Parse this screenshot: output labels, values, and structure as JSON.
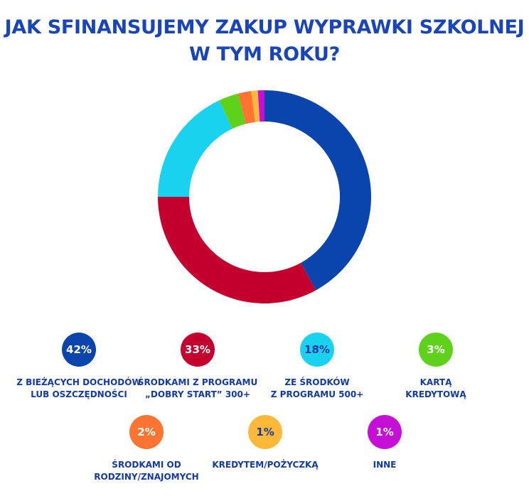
{
  "title": {
    "line1": "JAK SFINANSUJEMY ZAKUP WYPRAWKI SZKOLNEJ",
    "line2": "W TYM ROKU?"
  },
  "chart_data": {
    "type": "pie",
    "title": "JAK SFINANSUJEMY ZAKUP WYPRAWKI SZKOLNEJ W TYM ROKU?",
    "slices": [
      {
        "label_lines": [
          "Z BIEŻĄCYCH DOCHODÓW",
          "LUB OSZCZĘDNOŚCI"
        ],
        "value": 42,
        "value_label": "42%",
        "color": "#0a44ad",
        "text_color": "#ffffff"
      },
      {
        "label_lines": [
          "ŚRODKAMI Z PROGRAMU",
          "„DOBRY START” 300+"
        ],
        "value": 33,
        "value_label": "33%",
        "color": "#c4002f",
        "text_color": "#ffffff"
      },
      {
        "label_lines": [
          "ZE ŚRODKÓW",
          "Z PROGRAMU 500+"
        ],
        "value": 18,
        "value_label": "18%",
        "color": "#19d2ef",
        "text_color": "#143aa3"
      },
      {
        "label_lines": [
          "KARTĄ",
          "KREDYTOWĄ"
        ],
        "value": 3,
        "value_label": "3%",
        "color": "#5ed21a",
        "text_color": "#ffffff"
      },
      {
        "label_lines": [
          "ŚRODKAMI OD",
          "RODZINY/ZNAJOMYCH"
        ],
        "value": 2,
        "value_label": "2%",
        "color": "#ff7430",
        "text_color": "#ffffff"
      },
      {
        "label_lines": [
          "KREDYTEM/POŻYCZKĄ"
        ],
        "value": 1,
        "value_label": "1%",
        "color": "#ffb83a",
        "text_color": "#143aa3"
      },
      {
        "label_lines": [
          "INNE"
        ],
        "value": 1,
        "value_label": "1%",
        "color": "#c60fd6",
        "text_color": "#ffffff"
      }
    ]
  }
}
